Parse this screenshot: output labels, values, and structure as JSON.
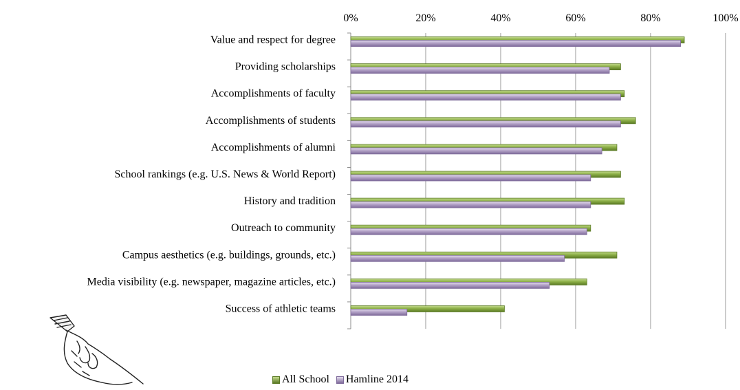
{
  "chart_data": {
    "type": "bar",
    "orientation": "horizontal",
    "categories": [
      "Value and respect for degree",
      "Providing scholarships",
      "Accomplishments of faculty",
      "Accomplishments of students",
      "Accomplishments of alumni",
      "School rankings (e.g. U.S. News & World Report)",
      "History and tradition",
      "Outreach to community",
      "Campus aesthetics (e.g. buildings, grounds, etc.)",
      "Media visibility (e.g. newspaper, magazine articles, etc.)",
      "Success of athletic teams"
    ],
    "series": [
      {
        "name": "All School",
        "color": "#8db048",
        "values": [
          89,
          72,
          73,
          76,
          71,
          72,
          73,
          64,
          71,
          63,
          41
        ]
      },
      {
        "name": "Hamline 2014",
        "color": "#b3a2c7",
        "values": [
          88,
          69,
          72,
          72,
          67,
          64,
          64,
          63,
          57,
          53,
          15
        ]
      }
    ],
    "xlim": [
      0,
      100
    ],
    "xticks": [
      "0%",
      "20%",
      "40%",
      "60%",
      "80%",
      "100%"
    ],
    "grid": true,
    "legend_position": "bottom"
  },
  "decoration": {
    "icon": "pointing-hand-icon"
  }
}
